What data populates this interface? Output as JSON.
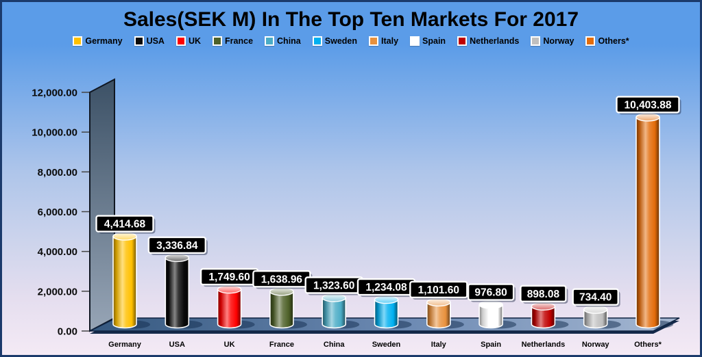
{
  "frame": {
    "border_color": "#1B3A6B"
  },
  "chart_data": {
    "type": "bar",
    "subtype": "3d-cylinder",
    "title": "Sales(SEK M) In The Top Ten Markets For 2017",
    "categories": [
      "Germany",
      "USA",
      "UK",
      "France",
      "China",
      "Sweden",
      "Italy",
      "Spain",
      "Netherlands",
      "Norway",
      "Others*"
    ],
    "values": [
      4414.68,
      3336.84,
      1749.6,
      1638.96,
      1323.6,
      1234.08,
      1101.6,
      976.8,
      898.08,
      734.4,
      10403.88
    ],
    "value_labels": [
      "4,414.68",
      "3,336.84",
      "1,749.60",
      "1,638.96",
      "1,323.60",
      "1,234.08",
      "1,101.60",
      "976.80",
      "898.08",
      "734.40",
      "10,403.88"
    ],
    "series_colors": [
      "#FFC000",
      "#0A0A0A",
      "#FE0000",
      "#4E6128",
      "#4BACC6",
      "#00B0F0",
      "#E8913D",
      "#FFFFFF",
      "#C00000",
      "#BFBFBF",
      "#E36C0A"
    ],
    "ylim": [
      0,
      12000
    ],
    "ytick_step": 2000,
    "ytick_labels": [
      "0.00",
      "2,000.00",
      "4,000.00",
      "6,000.00",
      "8,000.00",
      "10,000.00",
      "12,000.00"
    ],
    "grid": false,
    "legend_position": "top",
    "value_label_style": {
      "bg": "#000000",
      "text": "#FFFFFF",
      "border": "#FFFFFF"
    },
    "background": {
      "top": "#5B9CE8",
      "mid": "#AEC5EA",
      "bottom": "#F4EAF5"
    },
    "wall_color_dark": "#3C5166",
    "wall_color_light": "#97A5B6",
    "floor_color_dark": "#35587F",
    "floor_color_light": "#A6B8D2"
  }
}
